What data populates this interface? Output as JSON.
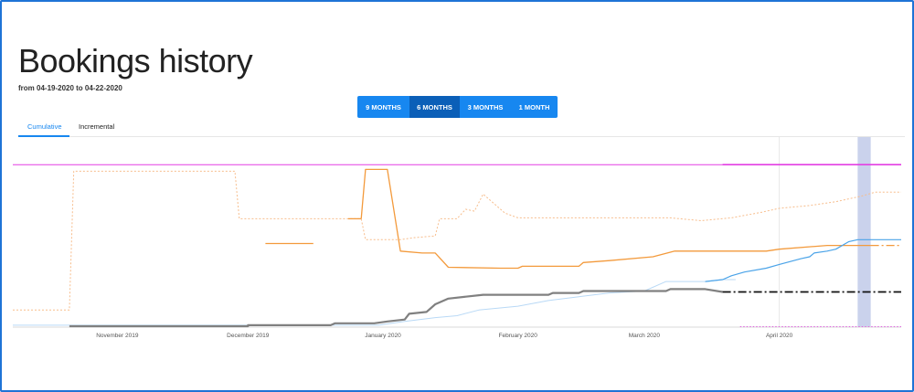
{
  "page": {
    "title": "Bookings history",
    "subtitle": "from 04-19-2020 to 04-22-2020"
  },
  "range_buttons": [
    {
      "label": "9 MONTHS",
      "active": false
    },
    {
      "label": "6 MONTHS",
      "active": true
    },
    {
      "label": "3 MONTHS",
      "active": false
    },
    {
      "label": "1 MONTH",
      "active": false
    }
  ],
  "tabs": [
    {
      "label": "Cumulative",
      "active": true
    },
    {
      "label": "Incremental",
      "active": false
    }
  ],
  "colors": {
    "accent": "#1787f0",
    "accent_active": "#0b5fb8",
    "magenta": "#e33fe3",
    "orange": "#f39a3c",
    "orange_light": "#f7bd8c",
    "gray": "#808080",
    "blue": "#4aa3e8",
    "blue_light": "#b9d9f6",
    "highlight": "#b8c3e6"
  },
  "chart_data": {
    "type": "line",
    "x_axis": {
      "type": "date",
      "range": [
        "2019-10-08",
        "2020-04-29"
      ],
      "ticks": [
        {
          "date": "2019-11-01",
          "label": "November 2019"
        },
        {
          "date": "2019-12-01",
          "label": "December 2019"
        },
        {
          "date": "2020-01-01",
          "label": "January 2020"
        },
        {
          "date": "2020-02-01",
          "label": "February 2020"
        },
        {
          "date": "2020-03-01",
          "label": "March 2020"
        },
        {
          "date": "2020-04-01",
          "label": "April 2020"
        }
      ]
    },
    "y_axis": {
      "range": [
        0,
        100
      ],
      "labels_visible": false
    },
    "highlight_band": {
      "from": "2020-04-19",
      "to": "2020-04-22"
    },
    "reference_line": {
      "date": "2020-04-01"
    },
    "series": [
      {
        "style": "solid",
        "color_key": "magenta",
        "width": 1,
        "points": [
          [
            "2019-10-08",
            85.5
          ],
          [
            "2020-04-29",
            85.5
          ]
        ]
      },
      {
        "style": "solid",
        "color_key": "magenta",
        "width": 1.6,
        "points": [
          [
            "2020-03-19",
            85.5
          ],
          [
            "2020-04-29",
            85.5
          ]
        ]
      },
      {
        "style": "solid",
        "color_key": "orange_light",
        "width": 1,
        "dash": "2,2",
        "points": [
          [
            "2019-10-08",
            9
          ],
          [
            "2019-10-21",
            9
          ],
          [
            "2019-10-22",
            82
          ],
          [
            "2019-11-28",
            82
          ],
          [
            "2019-11-29",
            57
          ],
          [
            "2019-12-27",
            57
          ],
          [
            "2019-12-28",
            46
          ],
          [
            "2020-01-05",
            46
          ],
          [
            "2020-01-08",
            47
          ],
          [
            "2020-01-13",
            48
          ],
          [
            "2020-01-14",
            57
          ],
          [
            "2020-01-18",
            57
          ],
          [
            "2020-01-20",
            62
          ],
          [
            "2020-01-22",
            61
          ],
          [
            "2020-01-24",
            70
          ],
          [
            "2020-01-26",
            66
          ],
          [
            "2020-01-29",
            60
          ],
          [
            "2020-02-01",
            57.5
          ],
          [
            "2020-03-07",
            57.5
          ],
          [
            "2020-03-14",
            56
          ],
          [
            "2020-03-21",
            57.5
          ],
          [
            "2020-03-28",
            60.5
          ],
          [
            "2020-04-01",
            62.5
          ],
          [
            "2020-04-08",
            64
          ],
          [
            "2020-04-14",
            66
          ],
          [
            "2020-04-20",
            69
          ],
          [
            "2020-04-23",
            71
          ],
          [
            "2020-04-29",
            71
          ]
        ]
      },
      {
        "style": "solid",
        "color_key": "orange",
        "width": 1.3,
        "points": [
          [
            "2019-12-05",
            44
          ],
          [
            "2019-12-16",
            44
          ]
        ]
      },
      {
        "style": "solid",
        "color_key": "orange",
        "width": 1.3,
        "points": [
          [
            "2019-12-24",
            57
          ],
          [
            "2019-12-27",
            57
          ]
        ]
      },
      {
        "style": "solid",
        "color_key": "orange",
        "width": 1.3,
        "points": [
          [
            "2019-12-27",
            57
          ],
          [
            "2019-12-28",
            83
          ],
          [
            "2020-01-02",
            83
          ],
          [
            "2020-01-05",
            40
          ],
          [
            "2020-01-10",
            39
          ],
          [
            "2020-01-13",
            39
          ],
          [
            "2020-01-16",
            31.5
          ],
          [
            "2020-01-28",
            31
          ],
          [
            "2020-02-01",
            31
          ],
          [
            "2020-02-02",
            32
          ],
          [
            "2020-02-15",
            32
          ],
          [
            "2020-02-16",
            34
          ],
          [
            "2020-02-22",
            35
          ],
          [
            "2020-03-03",
            37
          ],
          [
            "2020-03-08",
            40
          ],
          [
            "2020-03-29",
            40
          ],
          [
            "2020-04-01",
            41
          ],
          [
            "2020-04-12",
            43
          ],
          [
            "2020-04-22",
            43
          ]
        ]
      },
      {
        "style": "dash-dot",
        "color_key": "orange",
        "width": 1.3,
        "points": [
          [
            "2020-04-22",
            43
          ],
          [
            "2020-04-29",
            43
          ]
        ]
      },
      {
        "style": "solid",
        "color_key": "blue_light",
        "width": 1,
        "points": [
          [
            "2019-10-08",
            1
          ],
          [
            "2019-12-31",
            1
          ],
          [
            "2020-01-06",
            3
          ],
          [
            "2020-01-13",
            5
          ],
          [
            "2020-01-18",
            6
          ],
          [
            "2020-01-23",
            9
          ],
          [
            "2020-02-01",
            11
          ],
          [
            "2020-02-08",
            14
          ],
          [
            "2020-02-15",
            16
          ],
          [
            "2020-02-22",
            18
          ],
          [
            "2020-03-01",
            19
          ],
          [
            "2020-03-06",
            24
          ],
          [
            "2020-03-15",
            24
          ],
          [
            "2020-03-19",
            25
          ],
          [
            "2020-03-22",
            25
          ]
        ]
      },
      {
        "style": "solid",
        "color_key": "blue",
        "width": 1.2,
        "points": [
          [
            "2020-03-15",
            24
          ],
          [
            "2020-03-19",
            25
          ],
          [
            "2020-03-21",
            27
          ],
          [
            "2020-03-24",
            29
          ],
          [
            "2020-03-29",
            31
          ],
          [
            "2020-04-01",
            33
          ],
          [
            "2020-04-06",
            36
          ],
          [
            "2020-04-08",
            37
          ],
          [
            "2020-04-09",
            39
          ],
          [
            "2020-04-12",
            40
          ],
          [
            "2020-04-14",
            41
          ],
          [
            "2020-04-17",
            45
          ],
          [
            "2020-04-19",
            46
          ],
          [
            "2020-04-22",
            46
          ],
          [
            "2020-04-29",
            46
          ]
        ]
      },
      {
        "style": "solid",
        "color_key": "gray",
        "width": 2.2,
        "points": [
          [
            "2019-10-21",
            0.5
          ],
          [
            "2019-12-01",
            0.5
          ],
          [
            "2019-12-01",
            1
          ],
          [
            "2019-12-20",
            1
          ],
          [
            "2019-12-21",
            2
          ],
          [
            "2019-12-30",
            2
          ],
          [
            "2020-01-02",
            3
          ],
          [
            "2020-01-06",
            4
          ],
          [
            "2020-01-07",
            7
          ],
          [
            "2020-01-11",
            8
          ],
          [
            "2020-01-13",
            12
          ],
          [
            "2020-01-16",
            15
          ],
          [
            "2020-01-20",
            16
          ],
          [
            "2020-01-24",
            17
          ],
          [
            "2020-02-01",
            17
          ],
          [
            "2020-02-08",
            17
          ],
          [
            "2020-02-09",
            18
          ],
          [
            "2020-02-15",
            18
          ],
          [
            "2020-02-16",
            19
          ],
          [
            "2020-03-06",
            19
          ],
          [
            "2020-03-07",
            20
          ],
          [
            "2020-03-15",
            20
          ],
          [
            "2020-03-19",
            18.5
          ]
        ]
      },
      {
        "style": "dash-dot",
        "color_key": "black",
        "width": 1.8,
        "points": [
          [
            "2020-03-19",
            18.5
          ],
          [
            "2020-04-29",
            18.5
          ]
        ]
      },
      {
        "style": "dotted",
        "color_key": "magenta",
        "width": 0.8,
        "points": [
          [
            "2020-03-23",
            0.3
          ],
          [
            "2020-04-29",
            0.3
          ]
        ]
      }
    ]
  }
}
